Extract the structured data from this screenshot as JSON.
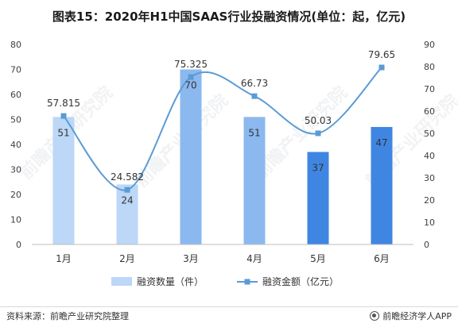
{
  "title": "图表15：2020年H1中国SAAS行业投融资情况(单位：起，亿元)",
  "source": "资料来源：前瞻产业研究院整理",
  "brand": "前瞻经济学人APP",
  "watermark": "前瞻产业研究院",
  "colors": {
    "bar_light": "#bcd7f7",
    "bar_mid": "#8bb8ef",
    "bar_dark": "#3f86e3",
    "line": "#5b9bd5"
  },
  "chart_data": {
    "type": "bar",
    "categories": [
      "1月",
      "2月",
      "3月",
      "4月",
      "5月",
      "6月"
    ],
    "series": [
      {
        "name": "融资数量（件）",
        "type": "bar",
        "axis": "left",
        "values": [
          51,
          24,
          70,
          51,
          37,
          47
        ]
      },
      {
        "name": "融资金额（亿元）",
        "type": "line",
        "axis": "right",
        "smooth": true,
        "values": [
          57.815,
          24.582,
          75.325,
          66.73,
          50.03,
          79.65
        ]
      }
    ],
    "bar_labels": [
      "51",
      "24",
      "70",
      "51",
      "37",
      "47"
    ],
    "line_labels": [
      "57.815",
      "24.582",
      "75.325",
      "66.73",
      "50.03",
      "79.65"
    ],
    "y_left": {
      "min": 0,
      "max": 80,
      "ticks": [
        "0",
        "10",
        "20",
        "30",
        "40",
        "50",
        "60",
        "70",
        "80"
      ]
    },
    "y_right": {
      "min": 0,
      "max": 90,
      "ticks": [
        "0",
        "10",
        "20",
        "30",
        "40",
        "50",
        "60",
        "70",
        "80",
        "90"
      ]
    },
    "grid": false,
    "legend_position": "bottom"
  }
}
